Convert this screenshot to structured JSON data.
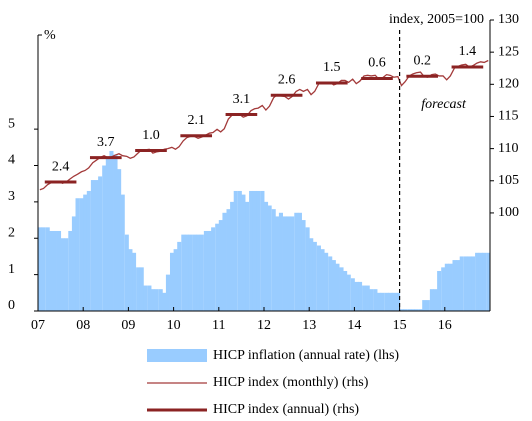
{
  "chart_data": {
    "type": "combo",
    "ylabel": "%",
    "y2label": "index, 2005=100",
    "xlim": [
      2007,
      2017
    ],
    "xticks": [
      {
        "value": 2007,
        "label": "07"
      },
      {
        "value": 2008,
        "label": "08"
      },
      {
        "value": 2009,
        "label": "09"
      },
      {
        "value": 2010,
        "label": "10"
      },
      {
        "value": 2011,
        "label": "11"
      },
      {
        "value": 2012,
        "label": "12"
      },
      {
        "value": 2013,
        "label": "13"
      },
      {
        "value": 2014,
        "label": "14"
      },
      {
        "value": 2015,
        "label": "15"
      },
      {
        "value": 2016,
        "label": "16"
      }
    ],
    "ylim": [
      0,
      8
    ],
    "yticks": [
      0,
      1,
      2,
      3,
      4,
      5
    ],
    "y2lim": [
      84.75,
      130
    ],
    "y2ticks": [
      100,
      105,
      110,
      115,
      120,
      125,
      130
    ],
    "x": [
      2007,
      2007.08,
      2007.17,
      2007.25,
      2007.33,
      2007.42,
      2007.5,
      2007.58,
      2007.67,
      2007.75,
      2007.83,
      2007.92,
      2008,
      2008.08,
      2008.17,
      2008.25,
      2008.33,
      2008.42,
      2008.5,
      2008.58,
      2008.67,
      2008.75,
      2008.83,
      2008.92,
      2009,
      2009.08,
      2009.17,
      2009.25,
      2009.33,
      2009.42,
      2009.5,
      2009.58,
      2009.67,
      2009.75,
      2009.83,
      2009.92,
      2010,
      2010.08,
      2010.17,
      2010.25,
      2010.33,
      2010.42,
      2010.5,
      2010.58,
      2010.67,
      2010.75,
      2010.83,
      2010.92,
      2011,
      2011.08,
      2011.17,
      2011.25,
      2011.33,
      2011.42,
      2011.5,
      2011.58,
      2011.67,
      2011.75,
      2011.83,
      2011.92,
      2012,
      2012.08,
      2012.17,
      2012.25,
      2012.33,
      2012.42,
      2012.5,
      2012.58,
      2012.67,
      2012.75,
      2012.83,
      2012.92,
      2013,
      2013.08,
      2013.17,
      2013.25,
      2013.33,
      2013.42,
      2013.5,
      2013.58,
      2013.67,
      2013.75,
      2013.83,
      2013.92,
      2014,
      2014.08,
      2014.17,
      2014.25,
      2014.33,
      2014.42,
      2014.5,
      2014.58,
      2014.67,
      2014.75,
      2014.83,
      2014.92,
      2015,
      2015.08,
      2015.17,
      2015.25,
      2015.33,
      2015.42,
      2015.5,
      2015.58,
      2015.67,
      2015.75,
      2015.83,
      2015.92,
      2016,
      2016.08,
      2016.17,
      2016.25,
      2016.33,
      2016.42,
      2016.5,
      2016.58,
      2016.67,
      2016.75,
      2016.83,
      2016.92
    ],
    "series": [
      {
        "name": "HICP inflation (annual rate) (lhs)",
        "color": "#99ccff",
        "values": [
          2.3,
          2.3,
          2.3,
          2.2,
          2.2,
          2.2,
          2.0,
          2.0,
          2.2,
          2.6,
          3.1,
          3.1,
          3.2,
          3.3,
          3.6,
          3.6,
          3.7,
          4.0,
          4.2,
          4.4,
          4.3,
          3.9,
          3.2,
          2.1,
          1.7,
          1.6,
          1.2,
          1.2,
          0.7,
          0.7,
          0.6,
          0.6,
          0.6,
          0.5,
          1.0,
          1.6,
          1.7,
          1.9,
          2.1,
          2.1,
          2.1,
          2.1,
          2.1,
          2.1,
          2.2,
          2.2,
          2.3,
          2.4,
          2.5,
          2.7,
          2.8,
          3.0,
          3.3,
          3.3,
          3.2,
          3.0,
          3.3,
          3.3,
          3.3,
          3.3,
          3.0,
          2.9,
          2.8,
          2.6,
          2.7,
          2.6,
          2.6,
          2.6,
          2.7,
          2.7,
          2.5,
          2.3,
          2.0,
          1.9,
          1.8,
          1.7,
          1.6,
          1.5,
          1.4,
          1.3,
          1.2,
          1.1,
          1.0,
          0.9,
          0.8,
          0.8,
          0.7,
          0.7,
          0.6,
          0.6,
          0.5,
          0.5,
          0.5,
          0.5,
          0.5,
          0.5,
          0.05,
          0.05,
          0.05,
          0.05,
          0.05,
          0.05,
          0.3,
          0.3,
          0.6,
          0.6,
          1.1,
          1.2,
          1.3,
          1.3,
          1.4,
          1.4,
          1.5,
          1.5,
          1.5,
          1.5,
          1.6,
          1.6,
          1.6,
          1.6
        ]
      },
      {
        "name": "HICP index (monthly) (rhs)",
        "color": "#a33a3a",
        "axis": "y2",
        "values": [
          103.6,
          103.8,
          104.4,
          104.7,
          104.8,
          104.9,
          104.6,
          104.8,
          105.3,
          105.7,
          106.0,
          106.4,
          106.6,
          107.0,
          107.8,
          108.2,
          108.6,
          108.9,
          108.6,
          108.7,
          109.0,
          109.2,
          108.9,
          108.8,
          108.5,
          108.7,
          109.3,
          109.8,
          109.8,
          109.9,
          109.3,
          109.5,
          109.6,
          109.9,
          110.0,
          110.2,
          109.9,
          110.3,
          111.2,
          111.7,
          111.9,
          111.9,
          111.6,
          111.8,
          112.1,
          112.4,
          112.5,
          113.0,
          112.6,
          113.1,
          114.6,
          115.2,
          115.3,
          115.3,
          114.9,
          115.1,
          115.9,
          116.2,
          116.3,
          116.7,
          116.0,
          116.6,
          117.9,
          118.4,
          118.2,
          118.1,
          117.7,
          118.1,
          118.9,
          119.2,
          118.9,
          119.2,
          118.4,
          118.9,
          120.1,
          120.2,
          120.3,
          120.3,
          119.9,
          120.1,
          120.6,
          120.6,
          120.3,
          120.8,
          120.1,
          120.5,
          121.3,
          121.4,
          121.3,
          121.4,
          120.8,
          121.0,
          121.5,
          121.4,
          121.1,
          121.2,
          119.8,
          120.4,
          121.3,
          121.6,
          121.8,
          121.9,
          121.2,
          121.1,
          121.5,
          121.6,
          121.3,
          121.3,
          120.7,
          121.3,
          122.5,
          122.8,
          123.0,
          123.1,
          122.7,
          122.9,
          123.3,
          123.5,
          123.4,
          123.7
        ]
      }
    ],
    "annual": {
      "name": "HICP index (annual) (rhs)",
      "color": "#8b2323",
      "label_color": "#a33a3a",
      "years": [
        2007,
        2008,
        2009,
        2010,
        2011,
        2012,
        2013,
        2014,
        2015,
        2016
      ],
      "values": [
        104.8,
        108.6,
        109.7,
        112.0,
        115.3,
        118.3,
        120.2,
        120.9,
        121.25,
        122.7
      ],
      "rate_labels": [
        "2.4",
        "3.7",
        "1.0",
        "2.1",
        "3.1",
        "2.6",
        "1.5",
        "0.6",
        "0.2",
        "1.4"
      ]
    },
    "forecast": {
      "text": "forecast",
      "start": 2015,
      "color": "#1f3f6e"
    }
  }
}
